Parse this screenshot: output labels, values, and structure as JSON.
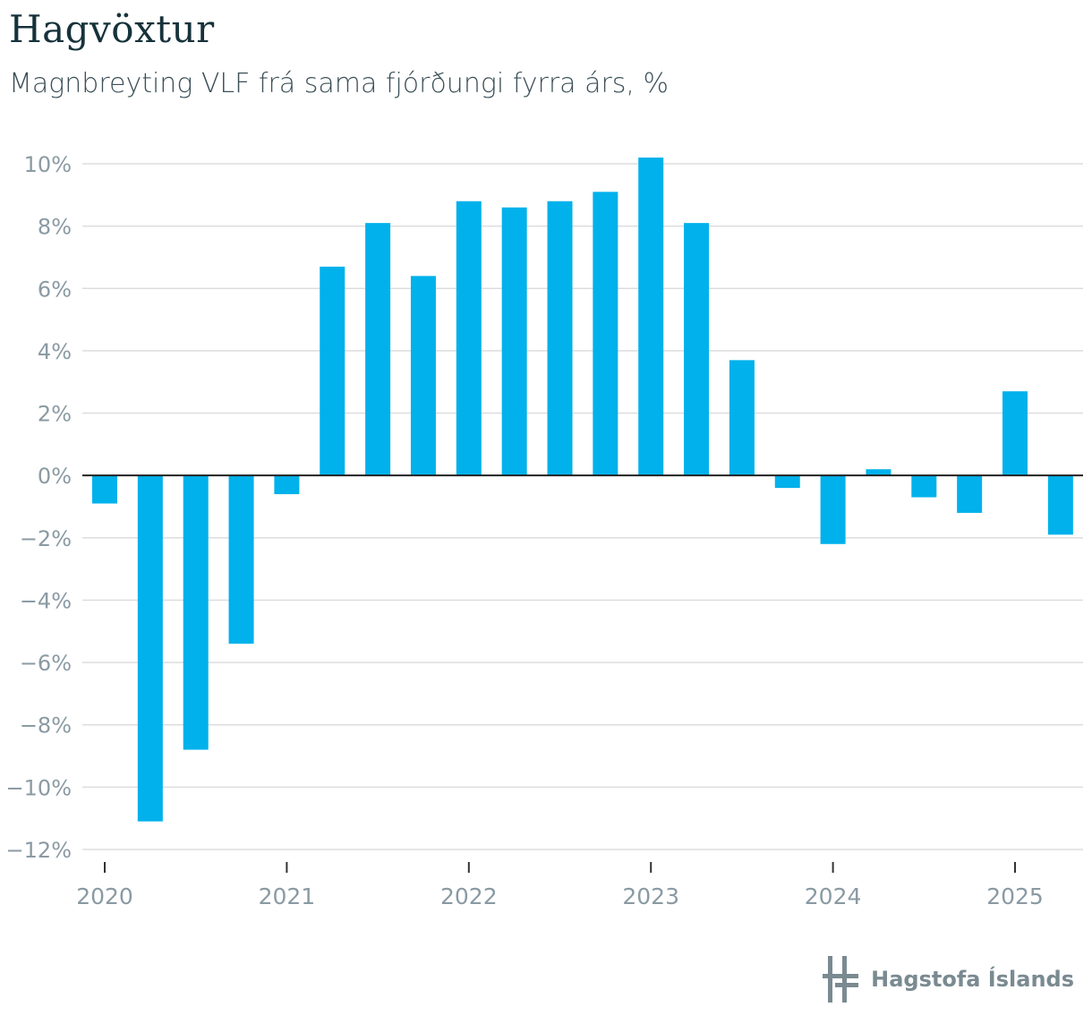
{
  "title": "Hagvöxtur",
  "subtitle": "Magnbreyting VLF frá sama fjórðungi fyrra árs, %",
  "brand": "Hagstofa Íslands",
  "colors": {
    "bar": "#00b1eb",
    "grid": "#dddddd",
    "axis_text": "#8a9aa3",
    "zero_line": "#222222"
  },
  "chart_data": {
    "type": "bar",
    "title": "Hagvöxtur",
    "subtitle": "Magnbreyting VLF frá sama fjórðungi fyrra árs, %",
    "ylim": [
      -12,
      10
    ],
    "y_ticks": [
      10,
      8,
      6,
      4,
      2,
      0,
      -2,
      -4,
      -6,
      -8,
      -10,
      -12
    ],
    "y_tick_labels": [
      "10%",
      "8%",
      "6%",
      "4%",
      "2%",
      "0%",
      "−2%",
      "−4%",
      "−6%",
      "−8%",
      "−10%",
      "−12%"
    ],
    "x_tick_labels": [
      "2020",
      "2021",
      "2022",
      "2023",
      "2024",
      "2025"
    ],
    "categories": [
      "2020Q1",
      "2020Q2",
      "2020Q3",
      "2020Q4",
      "2021Q1",
      "2021Q2",
      "2021Q3",
      "2021Q4",
      "2022Q1",
      "2022Q2",
      "2022Q3",
      "2022Q4",
      "2023Q1",
      "2023Q2",
      "2023Q3",
      "2023Q4",
      "2024Q1",
      "2024Q2",
      "2024Q3",
      "2024Q4",
      "2025Q1",
      "2025Q2"
    ],
    "values": [
      -0.9,
      -11.1,
      -8.8,
      -5.4,
      -0.6,
      6.7,
      8.1,
      6.4,
      8.8,
      8.6,
      8.8,
      9.1,
      10.2,
      8.1,
      3.7,
      -0.4,
      -2.2,
      0.2,
      -0.7,
      -1.2,
      2.7,
      -1.9
    ],
    "grid": true,
    "legend": "none"
  }
}
